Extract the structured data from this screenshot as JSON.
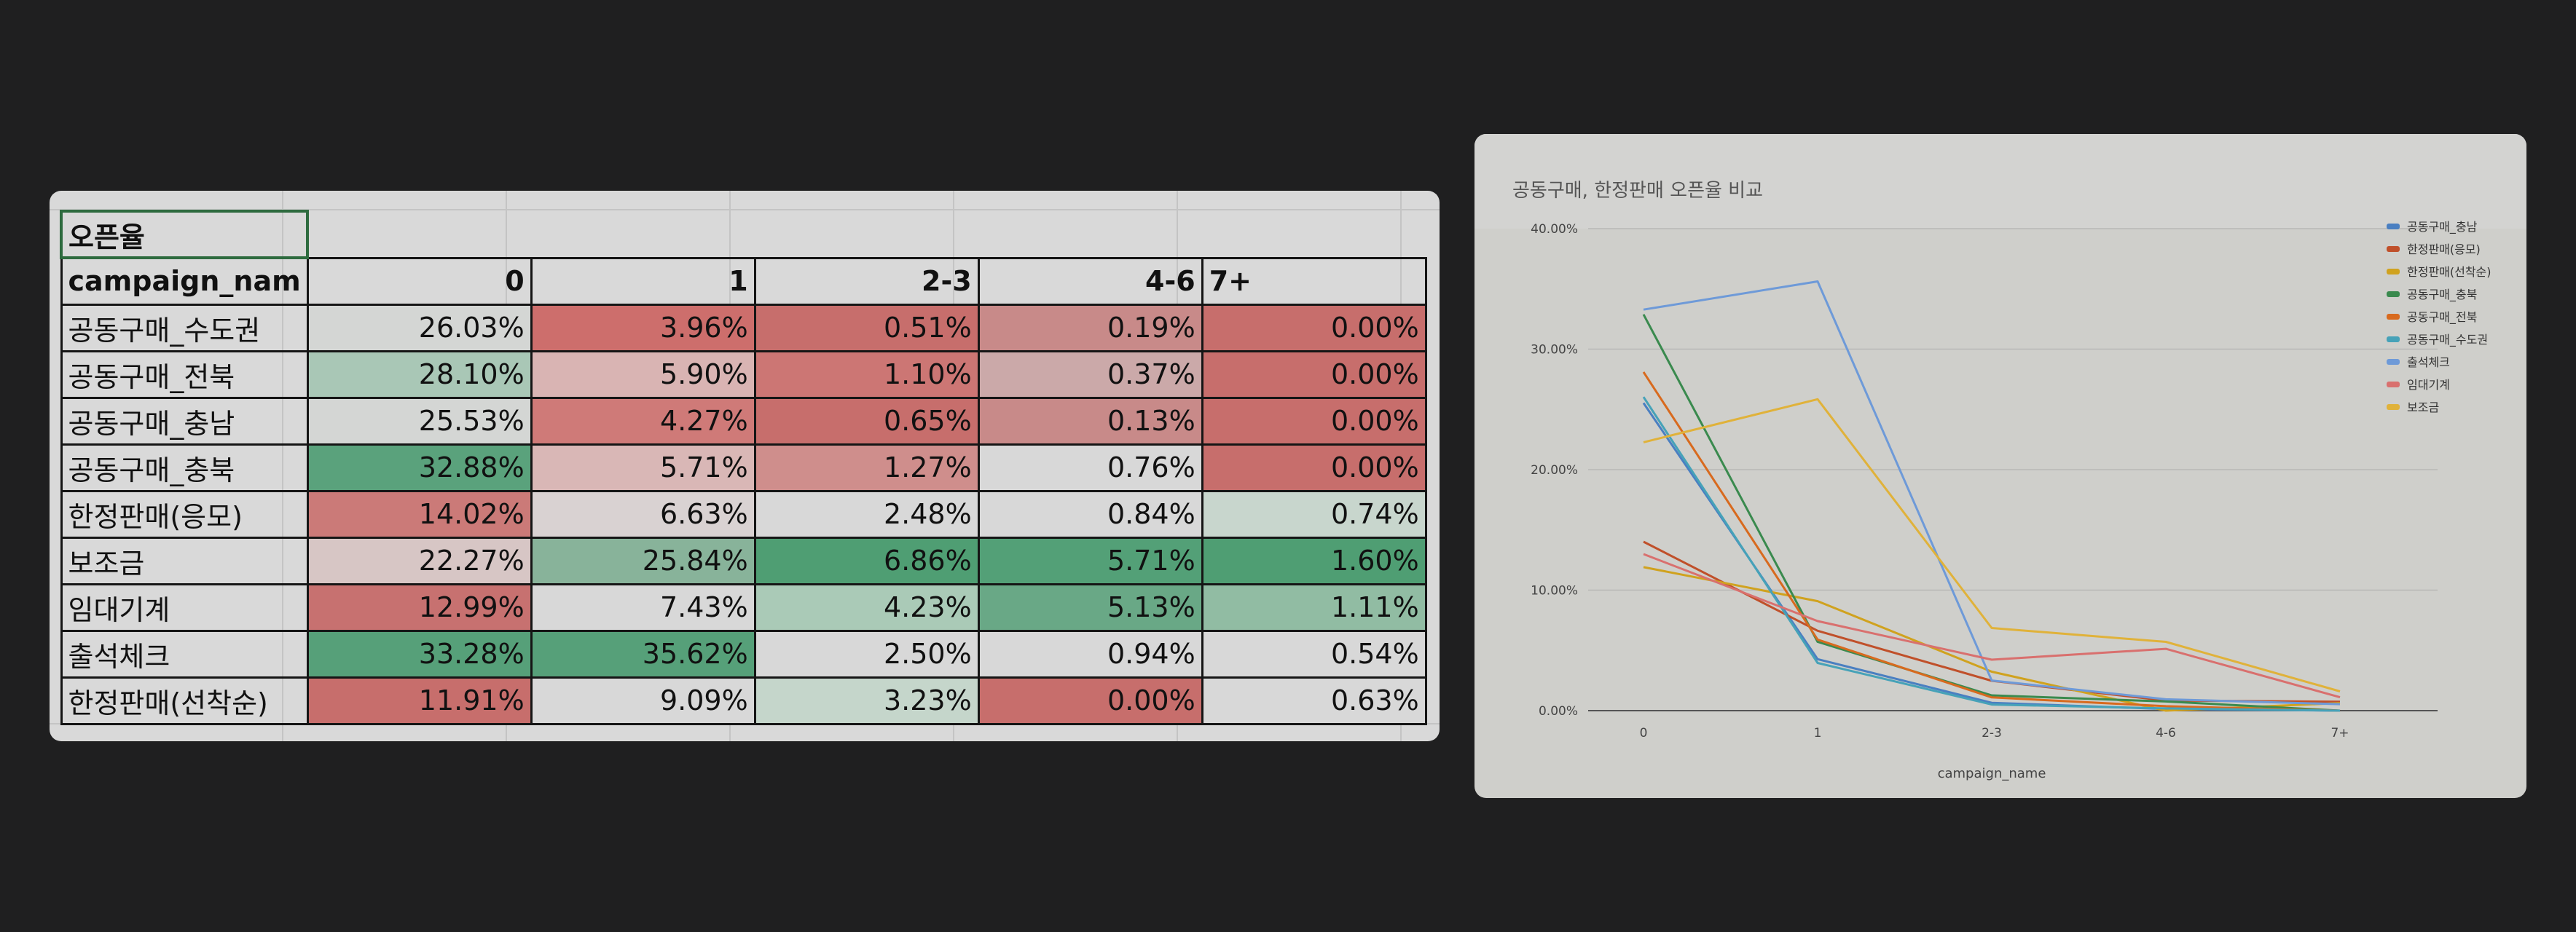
{
  "sheet": {
    "title_cell": "오픈율",
    "header": [
      "campaign_nam",
      "0",
      "1",
      "2-3",
      "4-6",
      "7+"
    ],
    "rows": [
      {
        "name": "공동구매_수도권",
        "values": [
          "26.03%",
          "3.96%",
          "0.51%",
          "0.19%",
          "0.00%"
        ],
        "colors": [
          "#d4d6d4",
          "#cd6e6c",
          "#c76e6c",
          "#c88a89",
          "#c76e6c"
        ]
      },
      {
        "name": "공동구매_전북",
        "values": [
          "28.10%",
          "5.90%",
          "1.10%",
          "0.37%",
          "0.00%"
        ],
        "colors": [
          "#a9c7b6",
          "#d9b4b3",
          "#cc7674",
          "#cba9a9",
          "#c76e6c"
        ]
      },
      {
        "name": "공동구매_충남",
        "values": [
          "25.53%",
          "4.27%",
          "0.65%",
          "0.13%",
          "0.00%"
        ],
        "colors": [
          "#d4d6d4",
          "#cf7a78",
          "#c76e6c",
          "#c88a89",
          "#c76e6c"
        ]
      },
      {
        "name": "공동구매_충북",
        "values": [
          "32.88%",
          "5.71%",
          "1.27%",
          "0.76%",
          "0.00%"
        ],
        "colors": [
          "#5aa27c",
          "#d9b7b6",
          "#cf8e8c",
          "#d8d8d8",
          "#c76e6c"
        ]
      },
      {
        "name": "한정판매(응모)",
        "values": [
          "14.02%",
          "6.63%",
          "2.48%",
          "0.84%",
          "0.74%"
        ],
        "colors": [
          "#cb7a78",
          "#d9d2d2",
          "#d8d8d8",
          "#d8d8d8",
          "#c8d6cd"
        ]
      },
      {
        "name": "보조금",
        "values": [
          "22.27%",
          "25.84%",
          "6.86%",
          "5.71%",
          "1.60%"
        ],
        "colors": [
          "#d7c6c5",
          "#88b39a",
          "#4f9e73",
          "#53a077",
          "#4f9e73"
        ]
      },
      {
        "name": "임대기계",
        "values": [
          "12.99%",
          "7.43%",
          "4.23%",
          "5.13%",
          "1.11%"
        ],
        "colors": [
          "#c77170",
          "#d8d8d8",
          "#aacab7",
          "#69a886",
          "#91bca3"
        ]
      },
      {
        "name": "출석체크",
        "values": [
          "33.28%",
          "35.62%",
          "2.50%",
          "0.94%",
          "0.54%"
        ],
        "colors": [
          "#56a079",
          "#56a079",
          "#d8d8d8",
          "#d8d8d8",
          "#d8d8d8"
        ]
      },
      {
        "name": "한정판매(선착순)",
        "values": [
          "11.91%",
          "9.09%",
          "3.23%",
          "0.00%",
          "0.63%"
        ],
        "colors": [
          "#c76e6c",
          "#d8d8d8",
          "#c5d6cb",
          "#c76e6c",
          "#d8d8d8"
        ]
      }
    ]
  },
  "chart_data": {
    "type": "line",
    "title": "공동구매, 한정판매 오픈율 비교",
    "xlabel": "campaign_name",
    "ylabel": "",
    "categories": [
      "0",
      "1",
      "2-3",
      "4-6",
      "7+"
    ],
    "y_ticks": [
      "0.00%",
      "10.00%",
      "20.00%",
      "30.00%",
      "40.00%"
    ],
    "ylim": [
      0,
      40
    ],
    "grid": true,
    "legend": "right",
    "series": [
      {
        "name": "공동구매_충남",
        "color": "#4a7fc1",
        "values": [
          25.53,
          4.27,
          0.65,
          0.13,
          0.0
        ]
      },
      {
        "name": "한정판매(응모)",
        "color": "#c0502a",
        "values": [
          14.02,
          6.63,
          2.48,
          0.84,
          0.74
        ]
      },
      {
        "name": "한정판매(선착순)",
        "color": "#d0a21e",
        "values": [
          11.91,
          9.09,
          3.23,
          0.0,
          0.63
        ]
      },
      {
        "name": "공동구매_충북",
        "color": "#3a8a4e",
        "values": [
          32.88,
          5.71,
          1.27,
          0.76,
          0.0
        ]
      },
      {
        "name": "공동구매_전북",
        "color": "#d86a1e",
        "values": [
          28.1,
          5.9,
          1.1,
          0.37,
          0.0
        ]
      },
      {
        "name": "공동구매_수도권",
        "color": "#46a2b8",
        "values": [
          26.03,
          3.96,
          0.51,
          0.19,
          0.0
        ]
      },
      {
        "name": "출석체크",
        "color": "#6e9ad8",
        "values": [
          33.28,
          35.62,
          2.5,
          0.94,
          0.54
        ]
      },
      {
        "name": "임대기계",
        "color": "#d9706e",
        "values": [
          12.99,
          7.43,
          4.23,
          5.13,
          1.11
        ]
      },
      {
        "name": "보조금",
        "color": "#e0b23a",
        "values": [
          22.27,
          25.84,
          6.86,
          5.71,
          1.6
        ]
      }
    ]
  }
}
